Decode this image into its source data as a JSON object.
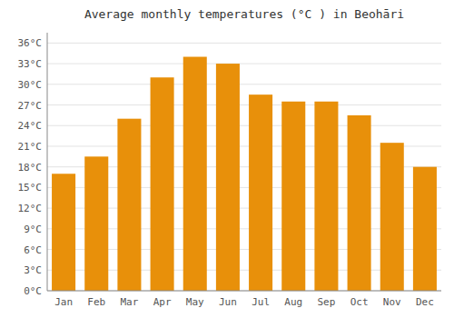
{
  "chart_data": {
    "type": "bar",
    "title": "Average monthly temperatures (°C ) in Beohāri",
    "categories": [
      "Jan",
      "Feb",
      "Mar",
      "Apr",
      "May",
      "Jun",
      "Jul",
      "Aug",
      "Sep",
      "Oct",
      "Nov",
      "Dec"
    ],
    "values": [
      17.0,
      19.5,
      25.0,
      31.0,
      34.0,
      33.0,
      28.5,
      27.5,
      27.5,
      25.5,
      21.5,
      18.0
    ],
    "color": "#E8900A",
    "ylim": [
      0,
      37.5
    ],
    "yticks": [
      {
        "value": 0,
        "label": "0°C"
      },
      {
        "value": 3,
        "label": "3°C"
      },
      {
        "value": 6,
        "label": "6°C"
      },
      {
        "value": 9,
        "label": "9°C"
      },
      {
        "value": 12,
        "label": "12°C"
      },
      {
        "value": 15,
        "label": "15°C"
      },
      {
        "value": 18,
        "label": "18°C"
      },
      {
        "value": 21,
        "label": "21°C"
      },
      {
        "value": 24,
        "label": "24°C"
      },
      {
        "value": 27,
        "label": "27°C"
      },
      {
        "value": 30,
        "label": "30°C"
      },
      {
        "value": 33,
        "label": "33°C"
      },
      {
        "value": 36,
        "label": "36°C"
      }
    ],
    "grid": true
  }
}
